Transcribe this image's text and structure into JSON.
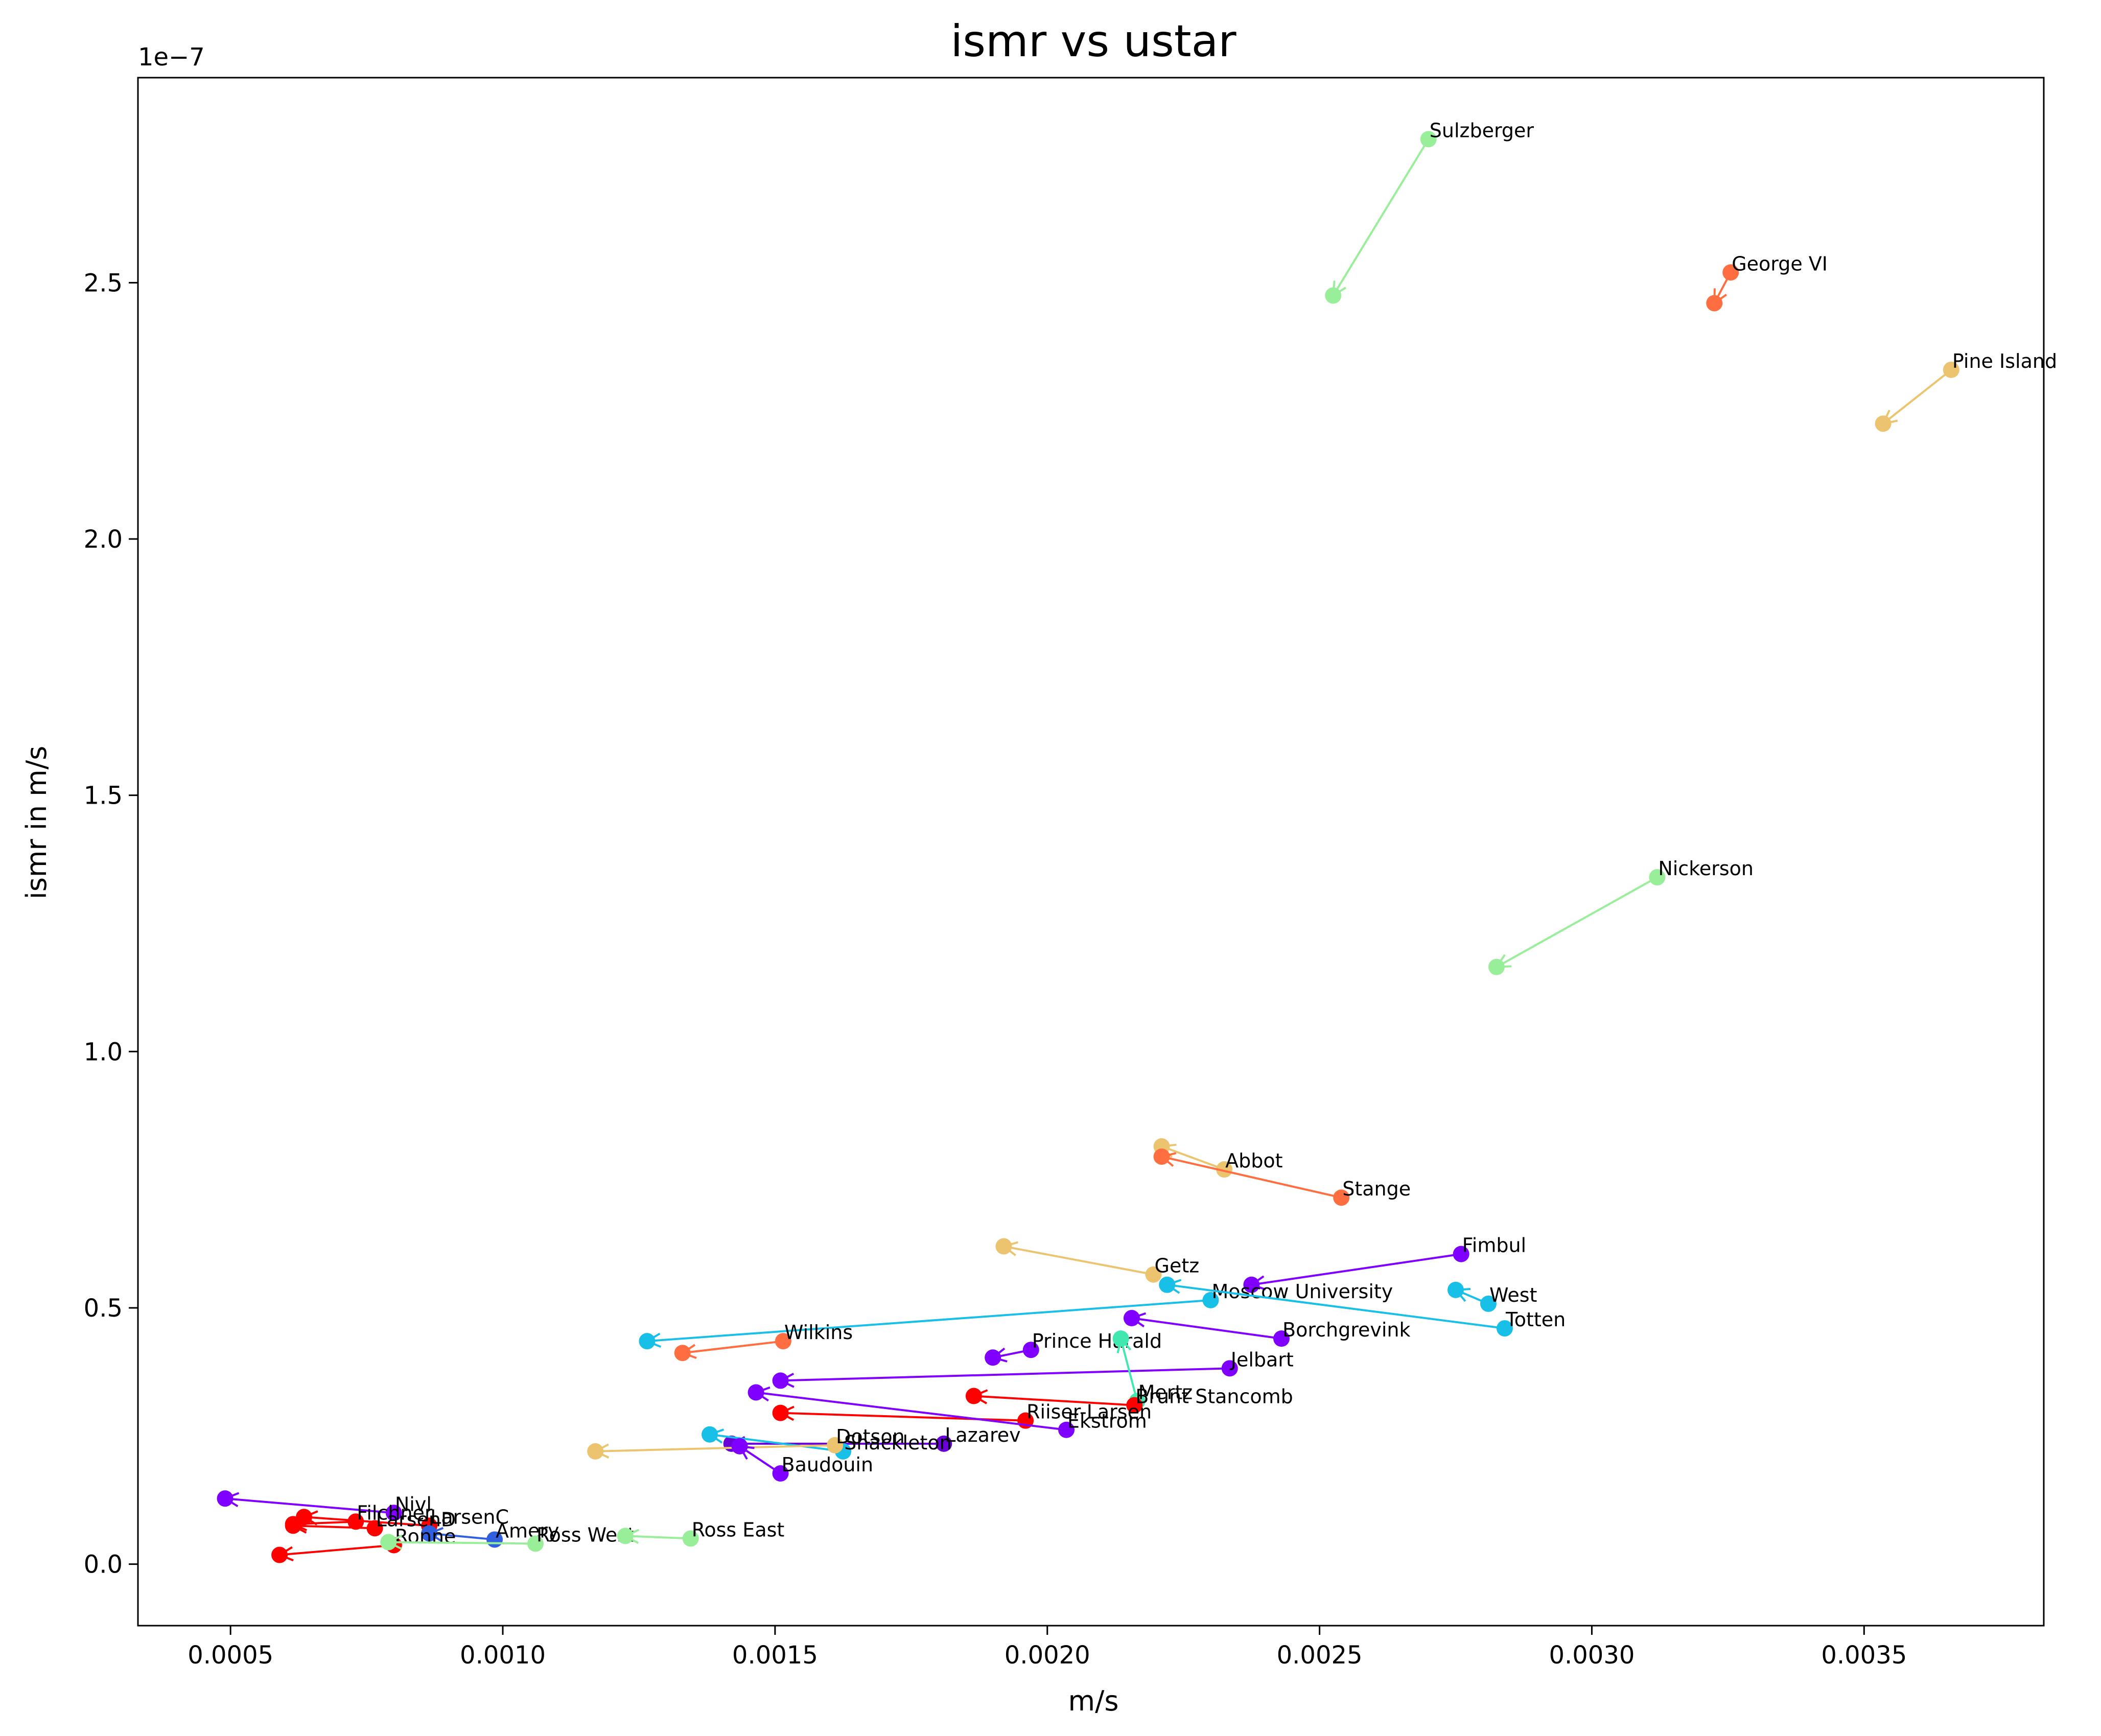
{
  "chart_data": {
    "type": "scatter",
    "title": "ismr vs ustar",
    "xlabel": "m/s",
    "ylabel": "ismr in m/s",
    "y_offset_text": "1e−7",
    "xlim": [
      0.00033,
      0.00383
    ],
    "ylim": [
      -0.12,
      2.9
    ],
    "x_ticks": [
      0.0005,
      0.001,
      0.0015,
      0.002,
      0.0025,
      0.003,
      0.0035
    ],
    "x_tick_labels": [
      "0.0005",
      "0.0010",
      "0.0015",
      "0.0020",
      "0.0025",
      "0.0030",
      "0.0035"
    ],
    "y_ticks": [
      0.0,
      0.5,
      1.0,
      1.5,
      2.0,
      2.5
    ],
    "y_tick_labels": [
      "0.0",
      "0.5",
      "1.0",
      "1.5",
      "2.0",
      "2.5"
    ],
    "grid": false,
    "legend": "none",
    "series": [
      {
        "name": "Sulzberger",
        "color": "#99ee99",
        "x": [
          0.0027,
          0.002525
        ],
        "y": [
          2.78,
          2.475
        ]
      },
      {
        "name": "George VI",
        "color": "#ff6e40",
        "x": [
          0.003255,
          0.003225
        ],
        "y": [
          2.52,
          2.46
        ]
      },
      {
        "name": "Pine Island",
        "color": "#ecc470",
        "x": [
          0.00366,
          0.003535
        ],
        "y": [
          2.33,
          2.225
        ]
      },
      {
        "name": "Nickerson",
        "color": "#99ee99",
        "x": [
          0.00312,
          0.002825
        ],
        "y": [
          1.34,
          1.165
        ]
      },
      {
        "name": "Abbot",
        "color": "#ecc470",
        "x": [
          0.002325,
          0.00221
        ],
        "y": [
          0.77,
          0.815
        ]
      },
      {
        "name": "Stange",
        "color": "#ff6e40",
        "x": [
          0.00254,
          0.00221
        ],
        "y": [
          0.715,
          0.795
        ]
      },
      {
        "name": "Fimbul",
        "color": "#7f00ff",
        "x": [
          0.00276,
          0.002375
        ],
        "y": [
          0.605,
          0.545
        ]
      },
      {
        "name": "Getz",
        "color": "#ecc470",
        "x": [
          0.002195,
          0.00192
        ],
        "y": [
          0.565,
          0.62
        ]
      },
      {
        "name": "Moscow University",
        "color": "#18c0e8",
        "x": [
          0.0023,
          0.001265
        ],
        "y": [
          0.515,
          0.435
        ]
      },
      {
        "name": "West",
        "color": "#18c0e8",
        "x": [
          0.00281,
          0.00275
        ],
        "y": [
          0.508,
          0.535
        ]
      },
      {
        "name": "Totten",
        "color": "#18c0e8",
        "x": [
          0.00284,
          0.00222
        ],
        "y": [
          0.46,
          0.545
        ]
      },
      {
        "name": "Borchgrevink",
        "color": "#7f00ff",
        "x": [
          0.00243,
          0.002155
        ],
        "y": [
          0.44,
          0.48
        ]
      },
      {
        "name": "Wilkins",
        "color": "#ff6e40",
        "x": [
          0.001515,
          0.00133
        ],
        "y": [
          0.435,
          0.412
        ]
      },
      {
        "name": "Prince Harald",
        "color": "#7f00ff",
        "x": [
          0.00197,
          0.0019
        ],
        "y": [
          0.418,
          0.403
        ]
      },
      {
        "name": "Jelbart",
        "color": "#7f00ff",
        "x": [
          0.002335,
          0.00151
        ],
        "y": [
          0.382,
          0.358
        ]
      },
      {
        "name": "Mertz",
        "color": "#40e8b0",
        "x": [
          0.002165,
          0.002135
        ],
        "y": [
          0.318,
          0.44
        ]
      },
      {
        "name": "Brunt Stancomb",
        "color": "#ff0000",
        "x": [
          0.00216,
          0.001865
        ],
        "y": [
          0.31,
          0.328
        ]
      },
      {
        "name": "Riiser-Larsen",
        "color": "#ff0000",
        "x": [
          0.00196,
          0.00151
        ],
        "y": [
          0.28,
          0.295
        ]
      },
      {
        "name": "Ekstrom",
        "color": "#7f00ff",
        "x": [
          0.002035,
          0.001465
        ],
        "y": [
          0.262,
          0.335
        ]
      },
      {
        "name": "Lazarev",
        "color": "#6a00d8",
        "x": [
          0.00181,
          0.00142
        ],
        "y": [
          0.235,
          0.235
        ]
      },
      {
        "name": "Shackleton",
        "color": "#18c0e8",
        "x": [
          0.001625,
          0.00138
        ],
        "y": [
          0.22,
          0.253
        ]
      },
      {
        "name": "Dotson",
        "color": "#ecc470",
        "x": [
          0.00161,
          0.00117
        ],
        "y": [
          0.232,
          0.22
        ]
      },
      {
        "name": "Baudouin",
        "color": "#7f00ff",
        "x": [
          0.00151,
          0.001435
        ],
        "y": [
          0.177,
          0.23
        ]
      },
      {
        "name": "Nivl",
        "color": "#7f00ff",
        "x": [
          0.0008,
          0.00049
        ],
        "y": [
          0.1,
          0.128
        ]
      },
      {
        "name": "LarsenC",
        "color": "#ff0000",
        "x": [
          0.000865,
          0.000635
        ],
        "y": [
          0.075,
          0.092
        ]
      },
      {
        "name": "LarsenD",
        "color": "#ff0000",
        "x": [
          0.000765,
          0.000615
        ],
        "y": [
          0.07,
          0.075
        ]
      },
      {
        "name": "Filchner",
        "color": "#ff0000",
        "x": [
          0.00073,
          0.000615
        ],
        "y": [
          0.083,
          0.078
        ]
      },
      {
        "name": "Amery",
        "color": "#3060e0",
        "x": [
          0.000985,
          0.000865
        ],
        "y": [
          0.048,
          0.06
        ]
      },
      {
        "name": "Ronne",
        "color": "#ff0000",
        "x": [
          0.0008,
          0.00059
        ],
        "y": [
          0.037,
          0.018
        ]
      },
      {
        "name": "Ross West",
        "color": "#99ee99",
        "x": [
          0.00106,
          0.00079
        ],
        "y": [
          0.04,
          0.043
        ]
      },
      {
        "name": "Ross East",
        "color": "#99ee99",
        "x": [
          0.001345,
          0.001225
        ],
        "y": [
          0.05,
          0.055
        ]
      }
    ]
  }
}
